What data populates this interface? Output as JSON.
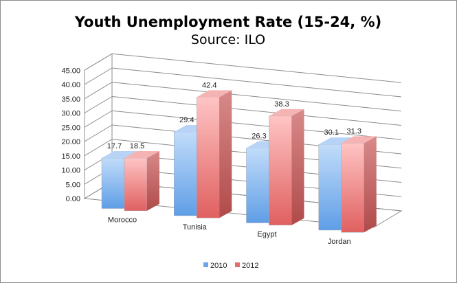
{
  "chart_data": {
    "type": "bar",
    "title": "Youth Unemployment Rate (15-24, %)",
    "subtitle": "Source: ILO",
    "categories": [
      "Morocco",
      "Tunisia",
      "Egypt",
      "Jordan"
    ],
    "series": [
      {
        "name": "2010",
        "values": [
          17.7,
          29.4,
          26.3,
          30.1
        ],
        "color": "#8db9ec",
        "labels": [
          "17.7",
          "29.4",
          "26.3",
          "30.1"
        ]
      },
      {
        "name": "2012",
        "values": [
          18.5,
          42.4,
          38.3,
          31.3
        ],
        "color": "#e98a8a",
        "labels": [
          "18.5",
          "42.4",
          "38.3",
          "31.3"
        ]
      }
    ],
    "ylim": [
      0,
      45
    ],
    "yticks": [
      "0.00",
      "5.00",
      "10.00",
      "15.00",
      "20.00",
      "25.00",
      "30.00",
      "35.00",
      "40.00",
      "45.00"
    ],
    "ytick_values": [
      0,
      5,
      10,
      15,
      20,
      25,
      30,
      35,
      40,
      45
    ],
    "grid": true,
    "legend_position": "bottom",
    "style": "3d-clustered-column"
  }
}
